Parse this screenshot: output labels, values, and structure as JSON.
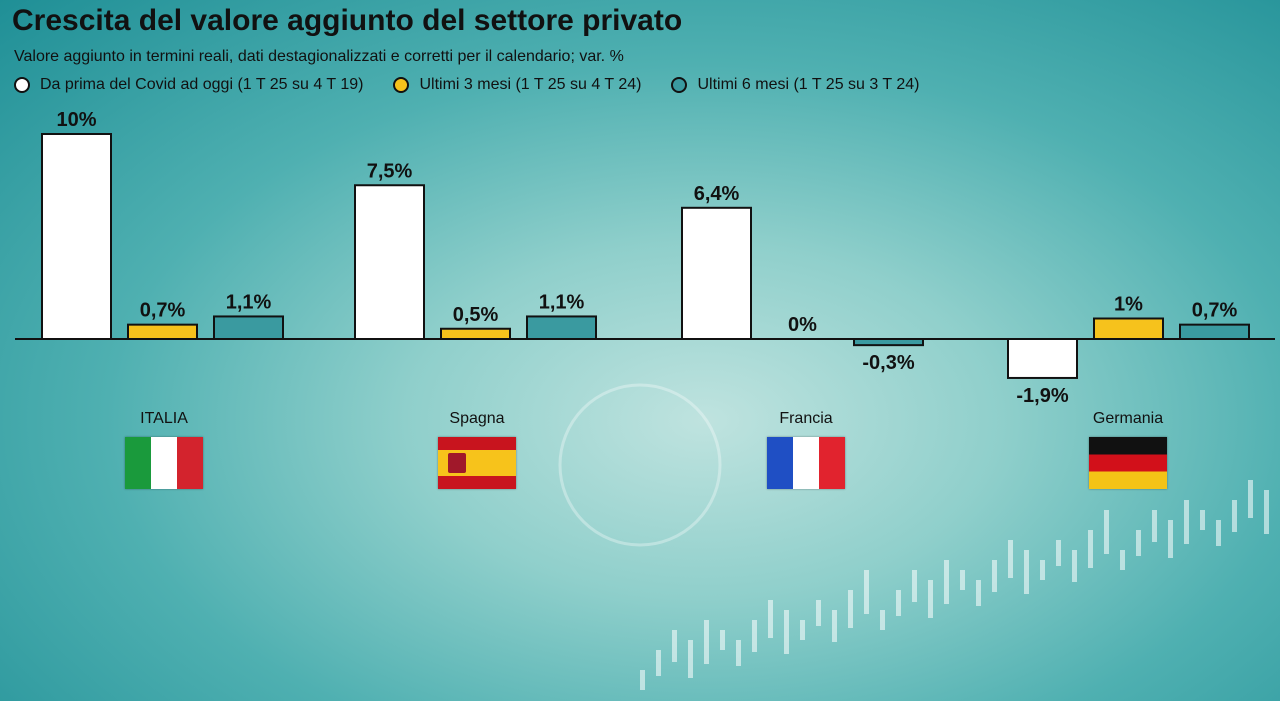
{
  "title": "Crescita del valore aggiunto del settore privato",
  "subtitle": "Valore aggiunto in termini reali, dati destagionalizzati e corretti per il calendario; var. %",
  "colors": {
    "white": "#ffffff",
    "yellow": "#f6c21c",
    "teal": "#3a9aa0",
    "outline": "#111111"
  },
  "chart_data": {
    "type": "bar",
    "categories": [
      "ITALIA",
      "Spagna",
      "Francia",
      "Germania"
    ],
    "series": [
      {
        "name": "Da prima del Covid ad oggi (1 T 25 su 4 T 19)",
        "color": "#ffffff",
        "values": [
          10,
          7.5,
          6.4,
          -1.9
        ],
        "labels": [
          "10%",
          "7,5%",
          "6,4%",
          "-1,9%"
        ]
      },
      {
        "name": "Ultimi 3 mesi (1 T 25 su 4 T 24)",
        "color": "#f6c21c",
        "values": [
          0.7,
          0.5,
          0,
          1
        ],
        "labels": [
          "0,7%",
          "0,5%",
          "0%",
          "1%"
        ]
      },
      {
        "name": "Ultimi 6 mesi (1 T 25 su 3 T 24)",
        "color": "#3a9aa0",
        "values": [
          1.1,
          1.1,
          -0.3,
          0.7
        ],
        "labels": [
          "1,1%",
          "1,1%",
          "-0,3%",
          "0,7%"
        ]
      }
    ],
    "ylim": [
      -1.9,
      10
    ],
    "grid": false,
    "legend_position": "top-left"
  },
  "countries": [
    {
      "name": "ITALIA",
      "flag": "italy-flag"
    },
    {
      "name": "Spagna",
      "flag": "spain-flag"
    },
    {
      "name": "Francia",
      "flag": "france-flag"
    },
    {
      "name": "Germania",
      "flag": "germany-flag"
    }
  ]
}
